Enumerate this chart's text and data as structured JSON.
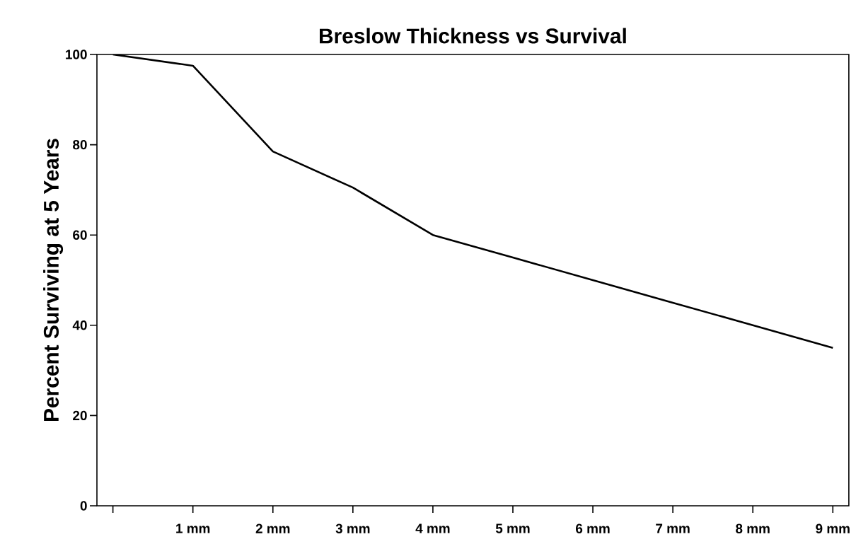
{
  "chart_data": {
    "type": "line",
    "title": "Breslow Thickness vs Survival",
    "ylabel": "Percent Surviving at 5 Years",
    "x": [
      0,
      1,
      2,
      3,
      4,
      5,
      6,
      7,
      8,
      9
    ],
    "series": [
      {
        "color": "#000000",
        "values": [
          100,
          97.5,
          78.5,
          70.5,
          60,
          55,
          50,
          45,
          40,
          35
        ]
      }
    ],
    "xlim": [
      -0.2,
      9.2
    ],
    "xticks": [
      {
        "value": 0,
        "label": null
      },
      {
        "value": 1,
        "label": "1 mm"
      },
      {
        "value": 2,
        "label": "2 mm"
      },
      {
        "value": 3,
        "label": "3 mm"
      },
      {
        "value": 4,
        "label": "4 mm"
      },
      {
        "value": 5,
        "label": "5 mm"
      },
      {
        "value": 6,
        "label": "6 mm"
      },
      {
        "value": 7,
        "label": "7 mm"
      },
      {
        "value": 8,
        "label": "8 mm"
      },
      {
        "value": 9,
        "label": "9 mm"
      }
    ],
    "ylim": [
      0,
      100
    ],
    "yticks": [
      0,
      20,
      40,
      60,
      80,
      100
    ],
    "grid": false,
    "legend": false,
    "marker": "none",
    "line_style": "solid"
  }
}
